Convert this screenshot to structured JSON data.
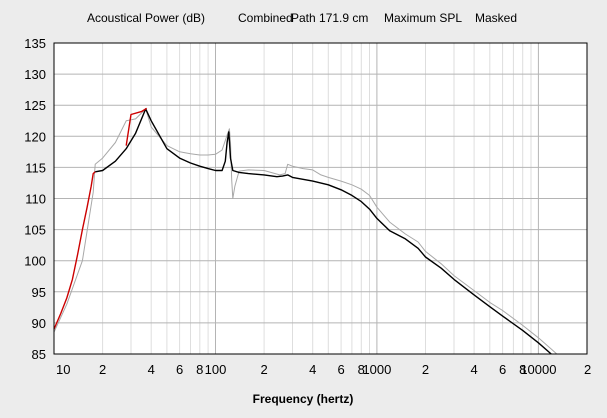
{
  "chart_data": {
    "type": "line",
    "title_parts": [
      "Acoustical Power (dB)",
      "Combined",
      "Path 171.9 cm",
      "Maximum SPL",
      "Masked"
    ],
    "xlabel": "Frequency (hertz)",
    "ylabel": "",
    "x_scale": "log",
    "xlim": [
      10,
      20000
    ],
    "ylim": [
      85,
      135
    ],
    "grid": true,
    "y_ticks": [
      "135",
      "130",
      "125",
      "120",
      "115",
      "110",
      "105",
      "100",
      "95",
      "90",
      "85"
    ],
    "x_ticks": [
      {
        "value": 10,
        "label": "10"
      },
      {
        "value": 20,
        "label": "2"
      },
      {
        "value": 40,
        "label": "4"
      },
      {
        "value": 60,
        "label": "6"
      },
      {
        "value": 80,
        "label": "8"
      },
      {
        "value": 100,
        "label": "100"
      },
      {
        "value": 200,
        "label": "2"
      },
      {
        "value": 400,
        "label": "4"
      },
      {
        "value": 600,
        "label": "6"
      },
      {
        "value": 800,
        "label": "8"
      },
      {
        "value": 1000,
        "label": "1000"
      },
      {
        "value": 2000,
        "label": "2"
      },
      {
        "value": 4000,
        "label": "4"
      },
      {
        "value": 6000,
        "label": "6"
      },
      {
        "value": 8000,
        "label": "8"
      },
      {
        "value": 10000,
        "label": "10000"
      },
      {
        "value": 20000,
        "label": "2"
      }
    ],
    "series": [
      {
        "color": "#a8a8a8",
        "points": [
          [
            10,
            88.5
          ],
          [
            12,
            93
          ],
          [
            15,
            100
          ],
          [
            17.5,
            111
          ],
          [
            18,
            115.5
          ],
          [
            20,
            116.5
          ],
          [
            24,
            119
          ],
          [
            28,
            122.5
          ],
          [
            32,
            122.8
          ],
          [
            37,
            124.4
          ],
          [
            40,
            121.5
          ],
          [
            50,
            118.5
          ],
          [
            60,
            117.5
          ],
          [
            70,
            117.2
          ],
          [
            80,
            117
          ],
          [
            90,
            117
          ],
          [
            100,
            117.1
          ],
          [
            110,
            117.8
          ],
          [
            118,
            120.2
          ],
          [
            122,
            121.2
          ],
          [
            124,
            119
          ],
          [
            126,
            113
          ],
          [
            128,
            110
          ],
          [
            132,
            112
          ],
          [
            140,
            114.4
          ],
          [
            160,
            114.6
          ],
          [
            200,
            114.5
          ],
          [
            250,
            113.8
          ],
          [
            270,
            114
          ],
          [
            280,
            115.5
          ],
          [
            300,
            115.2
          ],
          [
            350,
            114.8
          ],
          [
            400,
            114.6
          ],
          [
            450,
            113.8
          ],
          [
            500,
            113.4
          ],
          [
            600,
            112.8
          ],
          [
            700,
            112.2
          ],
          [
            800,
            111.5
          ],
          [
            900,
            110.5
          ],
          [
            1000,
            108.6
          ],
          [
            1200,
            106.2
          ],
          [
            1500,
            104.3
          ],
          [
            1800,
            103
          ],
          [
            2000,
            101.5
          ],
          [
            2500,
            99.5
          ],
          [
            3000,
            97.6
          ],
          [
            4000,
            95.2
          ],
          [
            5000,
            93.3
          ],
          [
            6000,
            92
          ],
          [
            8000,
            89.6
          ],
          [
            10000,
            87.6
          ],
          [
            12000,
            85.8
          ],
          [
            13000,
            85
          ]
        ]
      },
      {
        "color": "#000000",
        "points": [
          [
            18,
            114.3
          ],
          [
            20,
            114.5
          ],
          [
            24,
            116
          ],
          [
            28,
            118
          ],
          [
            32,
            120.5
          ],
          [
            37,
            124.4
          ],
          [
            40,
            122.5
          ],
          [
            50,
            118
          ],
          [
            60,
            116.5
          ],
          [
            70,
            115.7
          ],
          [
            80,
            115.2
          ],
          [
            90,
            114.8
          ],
          [
            100,
            114.5
          ],
          [
            110,
            114.5
          ],
          [
            115,
            116
          ],
          [
            118,
            119
          ],
          [
            121,
            120.7
          ],
          [
            124,
            116.5
          ],
          [
            128,
            114.5
          ],
          [
            140,
            114.2
          ],
          [
            160,
            114
          ],
          [
            200,
            113.8
          ],
          [
            240,
            113.5
          ],
          [
            260,
            113.6
          ],
          [
            280,
            113.8
          ],
          [
            300,
            113.4
          ],
          [
            400,
            112.8
          ],
          [
            500,
            112.2
          ],
          [
            600,
            111.4
          ],
          [
            700,
            110.5
          ],
          [
            800,
            109.5
          ],
          [
            900,
            108.3
          ],
          [
            1000,
            106.8
          ],
          [
            1200,
            104.8
          ],
          [
            1500,
            103.5
          ],
          [
            1800,
            102
          ],
          [
            2000,
            100.6
          ],
          [
            2500,
            98.8
          ],
          [
            3000,
            97
          ],
          [
            4000,
            94.5
          ],
          [
            5000,
            92.6
          ],
          [
            6000,
            91.1
          ],
          [
            8000,
            88.8
          ],
          [
            10000,
            86.8
          ],
          [
            12000,
            85
          ]
        ]
      },
      {
        "color": "#cc0000",
        "points": [
          [
            10,
            89
          ],
          [
            11,
            91.5
          ],
          [
            12,
            94
          ],
          [
            13,
            97
          ],
          [
            14,
            101
          ],
          [
            15,
            105
          ],
          [
            16,
            108.5
          ],
          [
            17,
            112
          ],
          [
            17.5,
            114
          ],
          [
            18,
            114.3
          ]
        ]
      },
      {
        "color": "#cc0000",
        "points": [
          [
            28,
            118.5
          ],
          [
            30,
            123.5
          ],
          [
            35,
            124
          ],
          [
            37.5,
            124.5
          ]
        ]
      }
    ]
  }
}
